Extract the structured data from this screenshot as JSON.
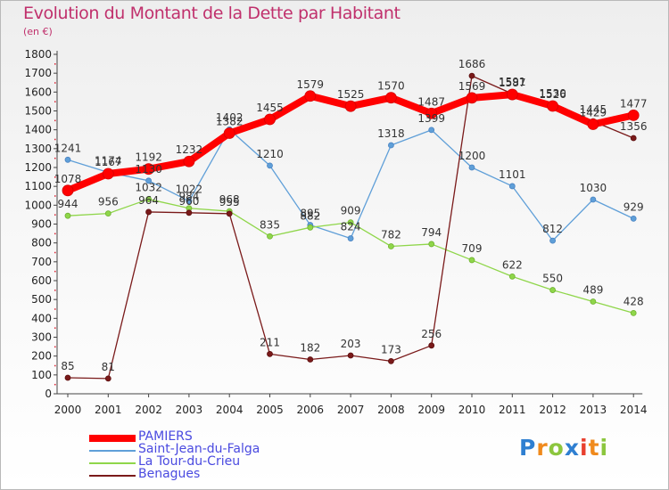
{
  "title": "Evolution du Montant de la Dette par Habitant",
  "unit_label": "(en €)",
  "chart_data": {
    "type": "line",
    "title": "Evolution du Montant de la Dette par Habitant",
    "subtitle": "(en €)",
    "x": [
      "2000",
      "2001",
      "2002",
      "2003",
      "2004",
      "2005",
      "2006",
      "2007",
      "2008",
      "2009",
      "2010",
      "2011",
      "2012",
      "2013",
      "2014"
    ],
    "y_ticks": [
      "0",
      "100",
      "200",
      "300",
      "400",
      "500",
      "600",
      "700",
      "800",
      "900",
      "1000",
      "1100",
      "1200",
      "1300",
      "1400",
      "1500",
      "1600",
      "1700",
      "1800"
    ],
    "ylim": [
      0,
      1800
    ],
    "grid": false,
    "legend_position": "bottom-left",
    "series": [
      {
        "name": "PAMIERS",
        "color": "#ff0000",
        "values": [
          1078,
          1167,
          1192,
          1232,
          1382,
          1455,
          1579,
          1525,
          1570,
          1487,
          1569,
          1587,
          1526,
          1429,
          1477
        ]
      },
      {
        "name": "Saint-Jean-du-Falga",
        "color": "#5f9fd8",
        "values": [
          1241,
          1174,
          1130,
          1022,
          1402,
          1210,
          895,
          824,
          1318,
          1399,
          1200,
          1101,
          812,
          1030,
          929
        ]
      },
      {
        "name": "La Tour-du-Crieu",
        "color": "#8fd64a",
        "values": [
          944,
          956,
          1032,
          984,
          968,
          835,
          882,
          909,
          782,
          794,
          709,
          622,
          550,
          489,
          428
        ]
      },
      {
        "name": "Benagues",
        "color": "#7a1a1a",
        "values": [
          85,
          81,
          964,
          960,
          955,
          211,
          182,
          203,
          173,
          256,
          1686,
          1591,
          1530,
          1445,
          1356
        ]
      }
    ],
    "point_labels": [
      [
        "1078",
        "1167",
        "1192",
        "1232",
        "1382",
        "1455",
        "1579",
        "1525",
        "1570",
        "1487",
        "1569",
        "1587",
        "1526",
        "1429",
        "1477"
      ],
      [
        "1241",
        "1174",
        "1130",
        "1022",
        "1402",
        "1210",
        "895",
        "824",
        "1318",
        "1399",
        "1200",
        "1101",
        "812",
        "1030",
        "929"
      ],
      [
        "944",
        "956",
        "1032",
        "984",
        "968",
        "835",
        "882",
        "909",
        "782",
        "794",
        "709",
        "622",
        "550",
        "489",
        "428"
      ],
      [
        "85",
        "81",
        "964",
        "960",
        "955",
        "211",
        "182",
        "203",
        "173",
        "256",
        "1686",
        "1591",
        "1530",
        "1445",
        "1356"
      ]
    ]
  },
  "legend": [
    {
      "label": "PAMIERS",
      "color": "#ff0000"
    },
    {
      "label": "Saint-Jean-du-Falga",
      "color": "#5f9fd8"
    },
    {
      "label": "La Tour-du-Crieu",
      "color": "#8fd64a"
    },
    {
      "label": "Benagues",
      "color": "#7a1a1a"
    }
  ],
  "logo": {
    "text": "Proxiti",
    "letters": [
      {
        "ch": "P",
        "color": "#2f7fd1"
      },
      {
        "ch": "r",
        "color": "#f08a1c"
      },
      {
        "ch": "o",
        "color": "#8cc63e"
      },
      {
        "ch": "x",
        "color": "#2f7fd1"
      },
      {
        "ch": "i",
        "color": "#e8402f"
      },
      {
        "ch": "t",
        "color": "#f08a1c"
      },
      {
        "ch": "i",
        "color": "#8cc63e"
      }
    ]
  }
}
